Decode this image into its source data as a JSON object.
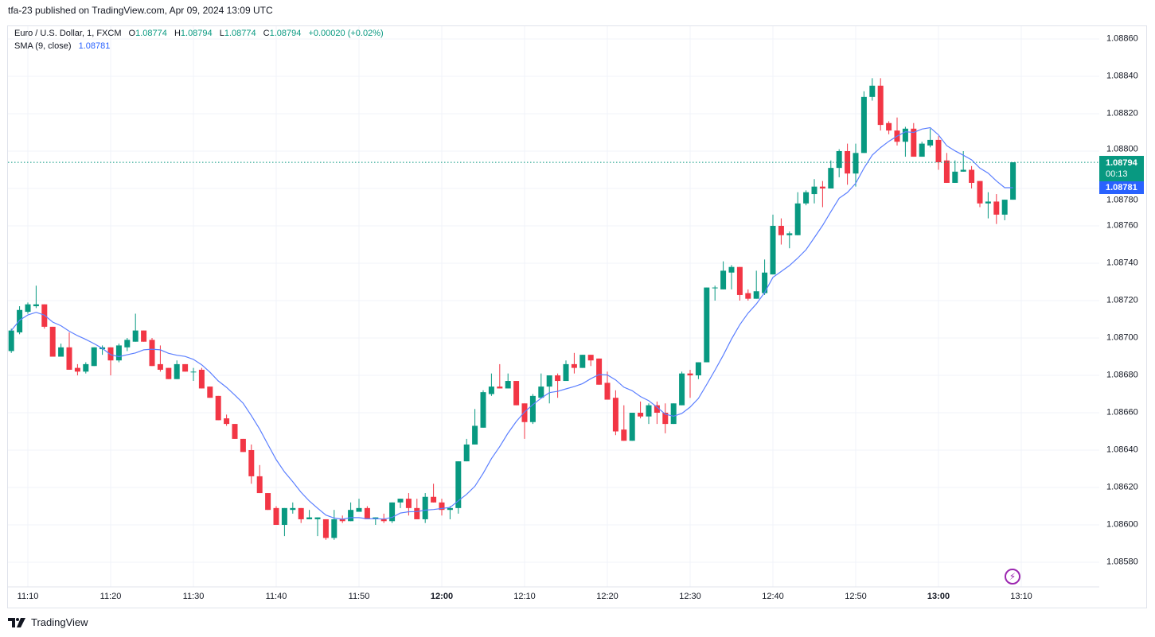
{
  "header": {
    "published": "tfa-23 published on TradingView.com, Apr 09, 2024 13:09 UTC"
  },
  "legend": {
    "symbol": "Euro / U.S. Dollar, 1, FXCM",
    "o_label": "O",
    "o_value": "1.08774",
    "h_label": "H",
    "h_value": "1.08794",
    "l_label": "L",
    "l_value": "1.08774",
    "c_label": "C",
    "c_value": "1.08794",
    "change": "+0.00020 (+0.02%)",
    "sma_label": "SMA (9, close)",
    "sma_value": "1.08781"
  },
  "price_label": {
    "last": "1.08794",
    "countdown": "00:13",
    "sma": "1.08781"
  },
  "colors": {
    "up": "#089981",
    "down": "#f23645",
    "sma": "#2962ff",
    "alert": "#9c27b0"
  },
  "brand": {
    "name": "TradingView"
  },
  "chart_data": {
    "type": "candlestick",
    "title": "Euro / U.S. Dollar, 1, FXCM",
    "interval_minutes": 1,
    "first_bar_time": "11:08",
    "ylim": [
      1.0857,
      1.08868
    ],
    "y_ticks": [
      "1.08860",
      "1.08840",
      "1.08820",
      "1.08800",
      "1.08780",
      "1.08760",
      "1.08740",
      "1.08720",
      "1.08700",
      "1.08680",
      "1.08660",
      "1.08640",
      "1.08620",
      "1.08600",
      "1.08580"
    ],
    "x_ticks": [
      {
        "label": "11:10",
        "bold": false
      },
      {
        "label": "11:20",
        "bold": false
      },
      {
        "label": "11:30",
        "bold": false
      },
      {
        "label": "11:40",
        "bold": false
      },
      {
        "label": "11:50",
        "bold": false
      },
      {
        "label": "12:00",
        "bold": true
      },
      {
        "label": "12:10",
        "bold": false
      },
      {
        "label": "12:20",
        "bold": false
      },
      {
        "label": "12:30",
        "bold": false
      },
      {
        "label": "12:40",
        "bold": false
      },
      {
        "label": "12:50",
        "bold": false
      },
      {
        "label": "13:00",
        "bold": true
      },
      {
        "label": "13:10",
        "bold": false
      }
    ],
    "indicator": {
      "name": "SMA",
      "period": 9,
      "source": "close"
    },
    "last_price": 1.08794,
    "ohlc": [
      [
        1.08693,
        1.08705,
        1.08692,
        1.08704
      ],
      [
        1.08703,
        1.08717,
        1.08702,
        1.08715
      ],
      [
        1.08714,
        1.08719,
        1.08713,
        1.08718
      ],
      [
        1.08717,
        1.08728,
        1.08716,
        1.08718
      ],
      [
        1.08718,
        1.08718,
        1.08705,
        1.08706
      ],
      [
        1.08706,
        1.08706,
        1.0869,
        1.0869
      ],
      [
        1.0869,
        1.08697,
        1.0869,
        1.08695
      ],
      [
        1.08695,
        1.08703,
        1.08683,
        1.08683
      ],
      [
        1.08684,
        1.08686,
        1.0868,
        1.08682
      ],
      [
        1.08682,
        1.08687,
        1.08681,
        1.08686
      ],
      [
        1.08685,
        1.08695,
        1.08685,
        1.08695
      ],
      [
        1.08694,
        1.08696,
        1.08691,
        1.08695
      ],
      [
        1.08695,
        1.08695,
        1.0868,
        1.08688
      ],
      [
        1.08688,
        1.08697,
        1.08687,
        1.08696
      ],
      [
        1.08695,
        1.087,
        1.08693,
        1.08699
      ],
      [
        1.08698,
        1.08713,
        1.08698,
        1.08704
      ],
      [
        1.08704,
        1.08704,
        1.08698,
        1.08698
      ],
      [
        1.08699,
        1.087,
        1.08685,
        1.08685
      ],
      [
        1.08686,
        1.08696,
        1.08682,
        1.08683
      ],
      [
        1.08684,
        1.08684,
        1.08678,
        1.08678
      ],
      [
        1.08678,
        1.08688,
        1.08678,
        1.08686
      ],
      [
        1.08686,
        1.08686,
        1.08682,
        1.08682
      ],
      [
        1.08682,
        1.08684,
        1.08677,
        1.08682
      ],
      [
        1.08683,
        1.08684,
        1.08673,
        1.08673
      ],
      [
        1.08674,
        1.08674,
        1.08668,
        1.08668
      ],
      [
        1.08669,
        1.08669,
        1.08656,
        1.08656
      ],
      [
        1.08657,
        1.08659,
        1.08653,
        1.08654
      ],
      [
        1.08654,
        1.08654,
        1.08646,
        1.08646
      ],
      [
        1.08646,
        1.08646,
        1.08639,
        1.08639
      ],
      [
        1.0864,
        1.08643,
        1.08622,
        1.08626
      ],
      [
        1.08626,
        1.08632,
        1.08617,
        1.08617
      ],
      [
        1.08617,
        1.08617,
        1.08608,
        1.08608
      ],
      [
        1.08609,
        1.0861,
        1.086,
        1.086
      ],
      [
        1.086,
        1.08609,
        1.08594,
        1.08609
      ],
      [
        1.08608,
        1.08612,
        1.08606,
        1.08609
      ],
      [
        1.08609,
        1.08609,
        1.08601,
        1.08603
      ],
      [
        1.08603,
        1.08608,
        1.08603,
        1.08604
      ],
      [
        1.08603,
        1.08604,
        1.08594,
        1.08604
      ],
      [
        1.08603,
        1.08603,
        1.08592,
        1.08593
      ],
      [
        1.08593,
        1.08608,
        1.08592,
        1.08603
      ],
      [
        1.08603,
        1.08605,
        1.08601,
        1.08602
      ],
      [
        1.08602,
        1.08612,
        1.08602,
        1.08608
      ],
      [
        1.08607,
        1.08614,
        1.08607,
        1.08609
      ],
      [
        1.08609,
        1.0861,
        1.08603,
        1.08603
      ],
      [
        1.08603,
        1.08604,
        1.086,
        1.08604
      ],
      [
        1.08603,
        1.08606,
        1.08601,
        1.08602
      ],
      [
        1.08602,
        1.08612,
        1.08601,
        1.08612
      ],
      [
        1.08612,
        1.08614,
        1.08609,
        1.08614
      ],
      [
        1.08614,
        1.08617,
        1.08605,
        1.08609
      ],
      [
        1.08609,
        1.08614,
        1.08603,
        1.08603
      ],
      [
        1.08603,
        1.08617,
        1.08601,
        1.08615
      ],
      [
        1.08615,
        1.08622,
        1.08612,
        1.08612
      ],
      [
        1.08612,
        1.08614,
        1.08605,
        1.08608
      ],
      [
        1.08608,
        1.0861,
        1.08603,
        1.08609
      ],
      [
        1.08609,
        1.08634,
        1.08606,
        1.08634
      ],
      [
        1.08634,
        1.08646,
        1.08634,
        1.08643
      ],
      [
        1.08643,
        1.08662,
        1.08643,
        1.08653
      ],
      [
        1.08652,
        1.08672,
        1.08652,
        1.08671
      ],
      [
        1.0867,
        1.08681,
        1.08669,
        1.08674
      ],
      [
        1.08674,
        1.08686,
        1.08673,
        1.08673
      ],
      [
        1.08673,
        1.08681,
        1.08673,
        1.08677
      ],
      [
        1.08677,
        1.08677,
        1.08664,
        1.08664
      ],
      [
        1.08665,
        1.08665,
        1.08646,
        1.08655
      ],
      [
        1.08655,
        1.0867,
        1.08654,
        1.08669
      ],
      [
        1.08668,
        1.08681,
        1.08668,
        1.08674
      ],
      [
        1.08674,
        1.0868,
        1.08665,
        1.0868
      ],
      [
        1.0868,
        1.08681,
        1.08668,
        1.08677
      ],
      [
        1.08677,
        1.08688,
        1.08677,
        1.08686
      ],
      [
        1.08686,
        1.08692,
        1.08681,
        1.08684
      ],
      [
        1.08684,
        1.08691,
        1.08684,
        1.08691
      ],
      [
        1.08691,
        1.08691,
        1.08685,
        1.08688
      ],
      [
        1.08689,
        1.08689,
        1.08675,
        1.08675
      ],
      [
        1.08676,
        1.08682,
        1.08667,
        1.08667
      ],
      [
        1.08668,
        1.08672,
        1.08648,
        1.0865
      ],
      [
        1.08651,
        1.08664,
        1.08645,
        1.08645
      ],
      [
        1.08645,
        1.0866,
        1.08645,
        1.0866
      ],
      [
        1.0866,
        1.08666,
        1.08657,
        1.08658
      ],
      [
        1.08658,
        1.08665,
        1.08654,
        1.08664
      ],
      [
        1.08664,
        1.08666,
        1.08654,
        1.0866
      ],
      [
        1.0866,
        1.08665,
        1.08649,
        1.08654
      ],
      [
        1.08654,
        1.08665,
        1.08654,
        1.08665
      ],
      [
        1.08664,
        1.08682,
        1.08664,
        1.08681
      ],
      [
        1.08681,
        1.08683,
        1.08668,
        1.0868
      ],
      [
        1.0868,
        1.08687,
        1.08678,
        1.08687
      ],
      [
        1.08687,
        1.08727,
        1.08687,
        1.08727
      ],
      [
        1.08727,
        1.08728,
        1.0872,
        1.08727
      ],
      [
        1.08726,
        1.08741,
        1.08726,
        1.08736
      ],
      [
        1.08735,
        1.08739,
        1.08726,
        1.08738
      ],
      [
        1.08738,
        1.08738,
        1.0872,
        1.08723
      ],
      [
        1.08724,
        1.08726,
        1.0872,
        1.08721
      ],
      [
        1.08721,
        1.08736,
        1.08721,
        1.08725
      ],
      [
        1.08724,
        1.08742,
        1.08723,
        1.08735
      ],
      [
        1.08734,
        1.08766,
        1.08734,
        1.0876
      ],
      [
        1.0876,
        1.08764,
        1.0875,
        1.08755
      ],
      [
        1.08755,
        1.08757,
        1.08748,
        1.08756
      ],
      [
        1.08755,
        1.08778,
        1.08755,
        1.08772
      ],
      [
        1.08772,
        1.08779,
        1.08771,
        1.08778
      ],
      [
        1.08777,
        1.08785,
        1.08772,
        1.08781
      ],
      [
        1.08781,
        1.08784,
        1.0877,
        1.0878
      ],
      [
        1.0878,
        1.08795,
        1.0878,
        1.08791
      ],
      [
        1.08791,
        1.08801,
        1.08786,
        1.088
      ],
      [
        1.088,
        1.08804,
        1.08782,
        1.08788
      ],
      [
        1.08788,
        1.08804,
        1.08781,
        1.08799
      ],
      [
        1.08799,
        1.08832,
        1.08799,
        1.08829
      ],
      [
        1.08829,
        1.08839,
        1.08827,
        1.08835
      ],
      [
        1.08835,
        1.08839,
        1.08811,
        1.08814
      ],
      [
        1.08815,
        1.08816,
        1.08809,
        1.08811
      ],
      [
        1.08811,
        1.08818,
        1.08803,
        1.08805
      ],
      [
        1.08805,
        1.08813,
        1.08797,
        1.08812
      ],
      [
        1.08812,
        1.08815,
        1.08797,
        1.08797
      ],
      [
        1.08797,
        1.08805,
        1.08797,
        1.08804
      ],
      [
        1.08803,
        1.08812,
        1.08802,
        1.08806
      ],
      [
        1.08806,
        1.08808,
        1.0879,
        1.08794
      ],
      [
        1.08795,
        1.08799,
        1.08783,
        1.08783
      ],
      [
        1.08783,
        1.08795,
        1.08783,
        1.08789
      ],
      [
        1.08789,
        1.088,
        1.08789,
        1.0879
      ],
      [
        1.0879,
        1.08792,
        1.0878,
        1.08783
      ],
      [
        1.08784,
        1.08784,
        1.0877,
        1.08772
      ],
      [
        1.08772,
        1.08778,
        1.08764,
        1.08773
      ],
      [
        1.08773,
        1.08777,
        1.08761,
        1.08766
      ],
      [
        1.08766,
        1.08774,
        1.08763,
        1.08774
      ],
      [
        1.08774,
        1.08794,
        1.08774,
        1.08794
      ]
    ]
  }
}
